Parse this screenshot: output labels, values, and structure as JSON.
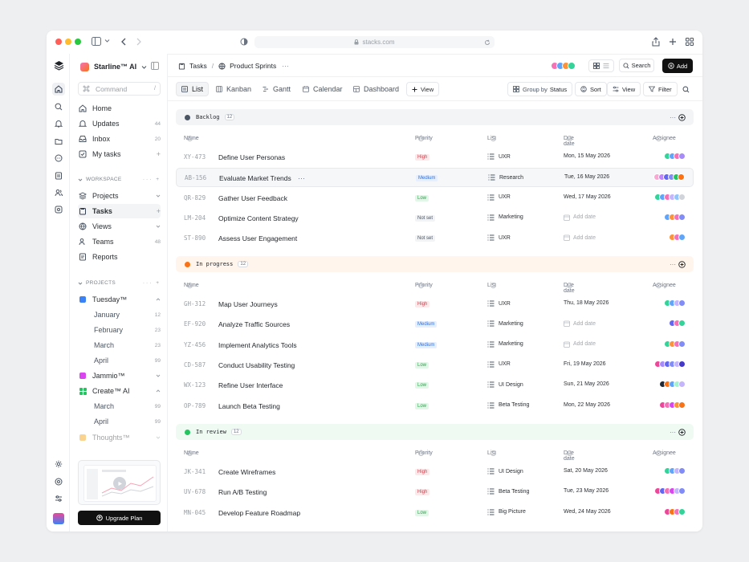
{
  "browser": {
    "url": "stacks.com"
  },
  "workspace": {
    "name": "Starline™ AI"
  },
  "search": {
    "placeholder": "Command",
    "shortcut": "/"
  },
  "nav_primary": [
    {
      "label": "Home",
      "count": ""
    },
    {
      "label": "Updates",
      "count": "44"
    },
    {
      "label": "Inbox",
      "count": "20"
    },
    {
      "label": "My tasks",
      "count": "+"
    }
  ],
  "workspace_section": {
    "title": "WORKSPACE"
  },
  "nav_workspace": [
    {
      "label": "Projects",
      "count": ""
    },
    {
      "label": "Tasks",
      "count": "+"
    },
    {
      "label": "Views",
      "count": ""
    },
    {
      "label": "Teams",
      "count": "48"
    },
    {
      "label": "Reports",
      "count": ""
    }
  ],
  "projects_section": {
    "title": "PROJECTS"
  },
  "projects": [
    {
      "label": "Tuesday™",
      "color": "#3b82f6"
    },
    {
      "label": "January",
      "count": "12"
    },
    {
      "label": "February",
      "count": "23"
    },
    {
      "label": "March",
      "count": "23"
    },
    {
      "label": "April",
      "count": "99"
    },
    {
      "label": "Jammio™",
      "color": "#d946ef"
    },
    {
      "label": "Create™ AI",
      "color": "#22c55e"
    },
    {
      "label": "March",
      "count": "99"
    },
    {
      "label": "April",
      "count": "99"
    },
    {
      "label": "Thoughts™",
      "color": "#f59e0b"
    }
  ],
  "upgrade": {
    "label": "Upgrade Plan"
  },
  "breadcrumb": {
    "root": "Tasks",
    "sep": "/",
    "current": "Product Sprints",
    "more": "···"
  },
  "header_actions": {
    "search": "Search",
    "add": "Add"
  },
  "tabs": [
    "List",
    "Kanban",
    "Gantt",
    "Calendar",
    "Dashboard",
    "View"
  ],
  "toolbar": {
    "group_by": "Group by",
    "group_value": "Status",
    "sort": "Sort",
    "view": "View",
    "filter": "Filter"
  },
  "columns": {
    "name": "Name",
    "priority": "Priority",
    "list": "List",
    "due": "Due date",
    "assignee": "Assignee"
  },
  "empty_due": "Add date",
  "groups": [
    {
      "name": "Backlog",
      "count": "12",
      "color": "#4b5563",
      "bg": "#f3f4f6",
      "tasks": [
        {
          "id": "XY-473",
          "name": "Define User Personas",
          "priority": "High",
          "pclass": "p-high",
          "list": "UXR",
          "due": "Mon, 15 May 2026",
          "avatars": [
            "#34d399",
            "#60a5fa",
            "#f472b6",
            "#a78bfa"
          ]
        },
        {
          "id": "AB-156",
          "name": "Evaluate Market Trends",
          "priority": "Medium",
          "pclass": "p-medium",
          "list": "Research",
          "due": "Tue, 16 May 2026",
          "avatars": [
            "#f9a8d4",
            "#c084fc",
            "#6366f1",
            "#818cf8",
            "#22c55e",
            "#f97316"
          ],
          "more": "···"
        },
        {
          "id": "QR-829",
          "name": "Gather User Feedback",
          "priority": "Low",
          "pclass": "p-low",
          "list": "UXR",
          "due": "Wed, 17 May 2026",
          "avatars": [
            "#34d399",
            "#60a5fa",
            "#f472b6",
            "#c4b5fd",
            "#93c5fd",
            "#d1d5db"
          ]
        },
        {
          "id": "LM-204",
          "name": "Optimize Content Strategy",
          "priority": "Not set",
          "pclass": "p-notset",
          "list": "Marketing",
          "due": "",
          "avatars": [
            "#60a5fa",
            "#fb923c",
            "#f472b6",
            "#818cf8"
          ]
        },
        {
          "id": "ST-890",
          "name": "Assess User Engagement",
          "priority": "Not set",
          "pclass": "p-notset",
          "list": "UXR",
          "due": "",
          "avatars": [
            "#fb923c",
            "#f472b6",
            "#60a5fa"
          ]
        }
      ]
    },
    {
      "name": "In progress",
      "count": "12",
      "color": "#f97316",
      "bg": "#fff5ec",
      "tasks": [
        {
          "id": "GH-312",
          "name": "Map User Journeys",
          "priority": "High",
          "pclass": "p-high",
          "list": "UXR",
          "due": "Thu, 18 May 2026",
          "avatars": [
            "#34d399",
            "#60a5fa",
            "#c4b5fd",
            "#818cf8"
          ]
        },
        {
          "id": "EF-920",
          "name": "Analyze Traffic Sources",
          "priority": "Medium",
          "pclass": "p-medium",
          "list": "Marketing",
          "due": "",
          "avatars": [
            "#6366f1",
            "#f472b6",
            "#34d399"
          ]
        },
        {
          "id": "YZ-456",
          "name": "Implement Analytics Tools",
          "priority": "Medium",
          "pclass": "p-medium",
          "list": "Marketing",
          "due": "",
          "avatars": [
            "#34d399",
            "#fb923c",
            "#f472b6",
            "#818cf8"
          ]
        },
        {
          "id": "CD-587",
          "name": "Conduct Usability Testing",
          "priority": "Low",
          "pclass": "p-low",
          "list": "UXR",
          "due": "Fri, 19 May 2026",
          "avatars": [
            "#ec4899",
            "#a78bfa",
            "#6366f1",
            "#818cf8",
            "#c4b5fd",
            "#4338ca"
          ]
        },
        {
          "id": "WX-123",
          "name": "Refine User Interface",
          "priority": "Low",
          "pclass": "p-low",
          "list": "UI Design",
          "due": "Sun, 21 May 2026",
          "avatars": [
            "#1f2937",
            "#f97316",
            "#60a5fa",
            "#a7f3d0",
            "#c4b5fd"
          ]
        },
        {
          "id": "OP-789",
          "name": "Launch Beta Testing",
          "priority": "Low",
          "pclass": "p-low",
          "list": "Beta Testing",
          "due": "Mon, 22 May 2026",
          "avatars": [
            "#ec4899",
            "#f472b6",
            "#d946ef",
            "#fb923c",
            "#f97316"
          ]
        }
      ]
    },
    {
      "name": "In review",
      "count": "12",
      "color": "#22c55e",
      "bg": "#effaf2",
      "tasks": [
        {
          "id": "JK-341",
          "name": "Create Wireframes",
          "priority": "High",
          "pclass": "p-high",
          "list": "UI Design",
          "due": "Sat, 20 May 2026",
          "avatars": [
            "#34d399",
            "#60a5fa",
            "#c4b5fd",
            "#818cf8"
          ]
        },
        {
          "id": "UV-678",
          "name": "Run A/B Testing",
          "priority": "High",
          "pclass": "p-high",
          "list": "Beta Testing",
          "due": "Tue, 23 May 2026",
          "avatars": [
            "#ec4899",
            "#6366f1",
            "#f472b6",
            "#d946ef",
            "#c4b5fd",
            "#818cf8"
          ]
        },
        {
          "id": "MN-045",
          "name": "Develop Feature Roadmap",
          "priority": "Low",
          "pclass": "p-low",
          "list": "Big Picture",
          "due": "Wed, 24 May 2026",
          "avatars": [
            "#ec4899",
            "#f97316",
            "#f472b6",
            "#34d399"
          ]
        }
      ]
    }
  ]
}
